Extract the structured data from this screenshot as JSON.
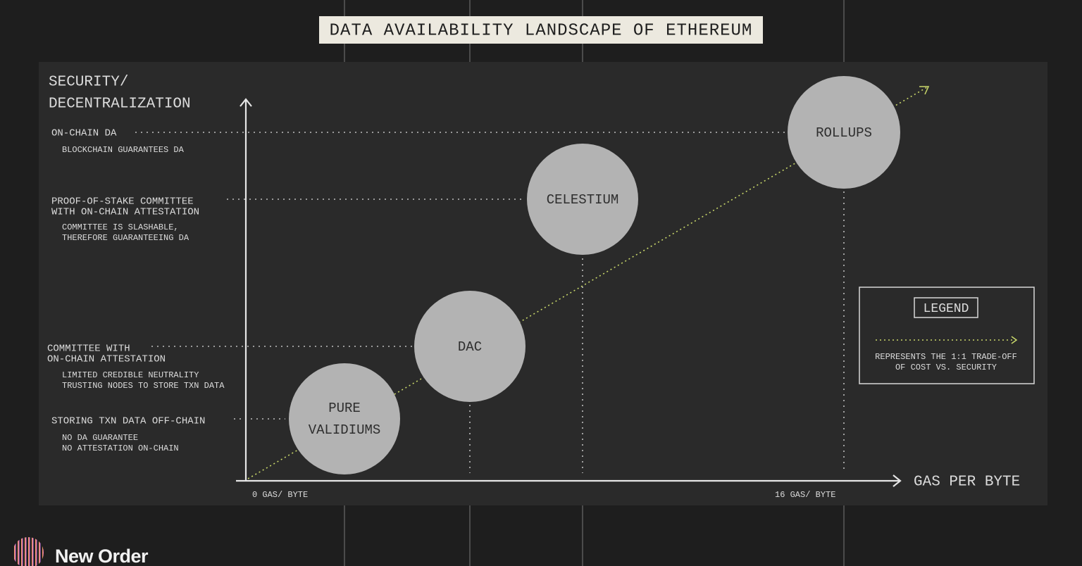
{
  "title": "DATA AVAILABILITY LANDSCAPE OF ETHEREUM",
  "y_axis": {
    "label": [
      "SECURITY/",
      "DECENTRALIZATION"
    ]
  },
  "x_axis": {
    "label": "GAS PER BYTE",
    "ticks": [
      "0 GAS/ BYTE",
      "16 GAS/ BYTE"
    ]
  },
  "levels": [
    {
      "title": [
        "ON-CHAIN DA"
      ],
      "notes": [
        "BLOCKCHAIN GUARANTEES DA"
      ]
    },
    {
      "title": [
        "PROOF-OF-STAKE COMMITTEE",
        "WITH ON-CHAIN ATTESTATION"
      ],
      "notes": [
        "COMMITTEE IS SLASHABLE,",
        "THEREFORE GUARANTEEING DA"
      ]
    },
    {
      "title": [
        "COMMITTEE WITH",
        "ON-CHAIN ATTESTATION"
      ],
      "notes": [
        "LIMITED CREDIBLE NEUTRALITY",
        "TRUSTING NODES TO STORE TXN DATA"
      ]
    },
    {
      "title": [
        "STORING TXN DATA OFF-CHAIN"
      ],
      "notes": [
        "NO DA GUARANTEE",
        "NO ATTESTATION ON-CHAIN"
      ]
    }
  ],
  "nodes": [
    {
      "label": [
        "ROLLUPS"
      ]
    },
    {
      "label": [
        "CELESTIUM"
      ]
    },
    {
      "label": [
        "DAC"
      ]
    },
    {
      "label": [
        "PURE",
        "VALIDIUMS"
      ]
    }
  ],
  "legend": {
    "title": "LEGEND",
    "text": [
      "REPRESENTS THE 1:1 TRADE-OFF",
      "OF COST VS. SECURITY"
    ]
  },
  "brand": "New Order"
}
